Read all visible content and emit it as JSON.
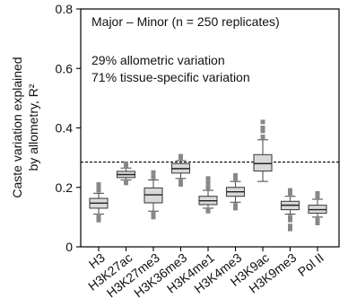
{
  "chart_data": {
    "type": "box",
    "title": "",
    "ylabel_lines": [
      "Caste variation explained",
      "by allometry, R²"
    ],
    "xlabel": "",
    "ylim": [
      0,
      0.8
    ],
    "yticks": [
      0,
      0.2,
      0.4,
      0.6,
      0.8
    ],
    "ytick_labels": [
      "0",
      "0.2",
      "0.4",
      "0.6",
      "0.8"
    ],
    "reference_line": 0.285,
    "annotations": [
      "Major – Minor (n = 250 replicates)",
      "29% allometric variation",
      "71% tissue-specific variation"
    ],
    "categories": [
      "H3",
      "H3K27ac",
      "H3K27me3",
      "H3K36me3",
      "H3K4me1",
      "H3K4me3",
      "H3K9ac",
      "H3K9me3",
      "Pol II"
    ],
    "boxes": [
      {
        "min": 0.11,
        "q1": 0.13,
        "median": 0.147,
        "q3": 0.163,
        "max": 0.18,
        "outliers": [
          0.09,
          0.095,
          0.1,
          0.105,
          0.19,
          0.2,
          0.21
        ]
      },
      {
        "min": 0.225,
        "q1": 0.233,
        "median": 0.243,
        "q3": 0.254,
        "max": 0.265,
        "outliers": [
          0.215,
          0.22,
          0.27,
          0.28
        ]
      },
      {
        "min": 0.12,
        "q1": 0.148,
        "median": 0.175,
        "q3": 0.198,
        "max": 0.225,
        "outliers": [
          0.1,
          0.105,
          0.11,
          0.235,
          0.25
        ]
      },
      {
        "min": 0.23,
        "q1": 0.248,
        "median": 0.263,
        "q3": 0.28,
        "max": 0.29,
        "outliers": [
          0.21,
          0.215,
          0.22,
          0.3,
          0.305
        ]
      },
      {
        "min": 0.13,
        "q1": 0.142,
        "median": 0.155,
        "q3": 0.17,
        "max": 0.19,
        "outliers": [
          0.12,
          0.125,
          0.2,
          0.215,
          0.23
        ]
      },
      {
        "min": 0.15,
        "q1": 0.17,
        "median": 0.185,
        "q3": 0.2,
        "max": 0.22,
        "outliers": [
          0.13,
          0.135,
          0.14,
          0.23,
          0.24
        ]
      },
      {
        "min": 0.22,
        "q1": 0.255,
        "median": 0.28,
        "q3": 0.31,
        "max": 0.36,
        "outliers": [
          0.37,
          0.39,
          0.4,
          0.42
        ]
      },
      {
        "min": 0.11,
        "q1": 0.125,
        "median": 0.14,
        "q3": 0.153,
        "max": 0.17,
        "outliers": [
          0.06,
          0.07,
          0.09,
          0.1,
          0.175,
          0.18,
          0.19
        ]
      },
      {
        "min": 0.1,
        "q1": 0.113,
        "median": 0.125,
        "q3": 0.14,
        "max": 0.16,
        "outliers": [
          0.08,
          0.09,
          0.165,
          0.175,
          0.18
        ]
      }
    ],
    "grid": false,
    "legend": "none"
  }
}
